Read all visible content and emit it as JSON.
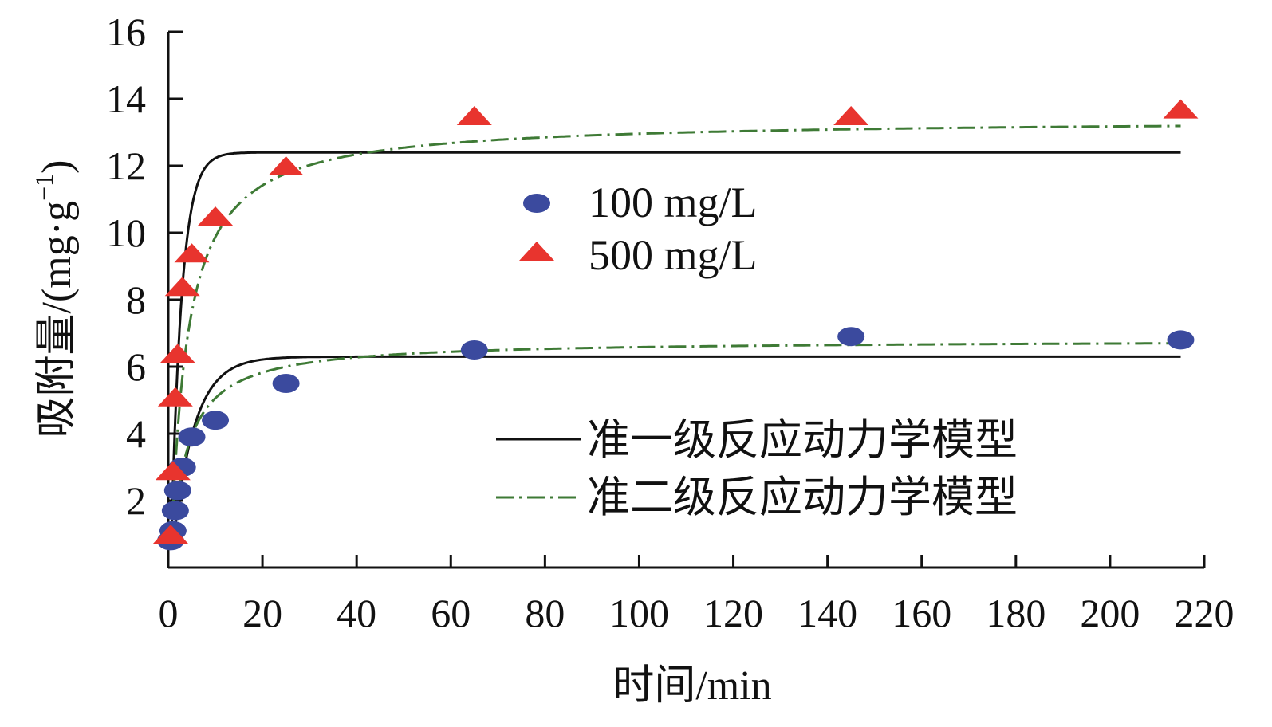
{
  "chart_data": {
    "type": "scatter",
    "title": "",
    "xlabel": "时间/min",
    "ylabel": "吸附量/(mg·g",
    "ylabel_sup": "−1",
    "ylabel_close": ")",
    "xlim": [
      0,
      220
    ],
    "ylim": [
      0,
      16
    ],
    "xticks": [
      0,
      20,
      40,
      60,
      80,
      100,
      120,
      140,
      160,
      180,
      200,
      220
    ],
    "yticks": [
      2,
      4,
      6,
      8,
      10,
      12,
      14,
      16
    ],
    "grid": false,
    "series": [
      {
        "name": "100 mg/L",
        "marker": "circle",
        "color": "#3b4a9e",
        "x": [
          0.5,
          1,
          1.5,
          2,
          3,
          5,
          10,
          25,
          65,
          145,
          215
        ],
        "y": [
          0.8,
          1.1,
          1.7,
          2.3,
          3.0,
          3.9,
          4.4,
          5.5,
          6.5,
          6.9,
          6.8
        ]
      },
      {
        "name": "500 mg/L",
        "marker": "triangle",
        "color": "#e8342e",
        "x": [
          0.5,
          1,
          1.5,
          2,
          3,
          5,
          10,
          25,
          65,
          145,
          215
        ],
        "y": [
          1.0,
          2.9,
          5.1,
          6.4,
          8.4,
          9.4,
          10.5,
          12.0,
          13.5,
          13.5,
          13.7
        ]
      }
    ],
    "models": [
      {
        "name": "准一级反应动力学模型",
        "style": "solid",
        "color": "#111111",
        "curves": [
          {
            "qe": 6.3,
            "k": 0.22,
            "x0": 0.5
          },
          {
            "qe": 12.4,
            "k": 0.45,
            "x0": 0.5
          }
        ]
      },
      {
        "name": "准二级反应动力学模型",
        "style": "dash-dot",
        "color": "#3e7a35",
        "curves": [
          {
            "qe": 6.8,
            "k": 0.045,
            "x0": 0.5
          },
          {
            "qe": 13.4,
            "k": 0.022,
            "x0": 0.5
          }
        ]
      }
    ],
    "x_end": 215,
    "legend_placement": "center-right"
  }
}
